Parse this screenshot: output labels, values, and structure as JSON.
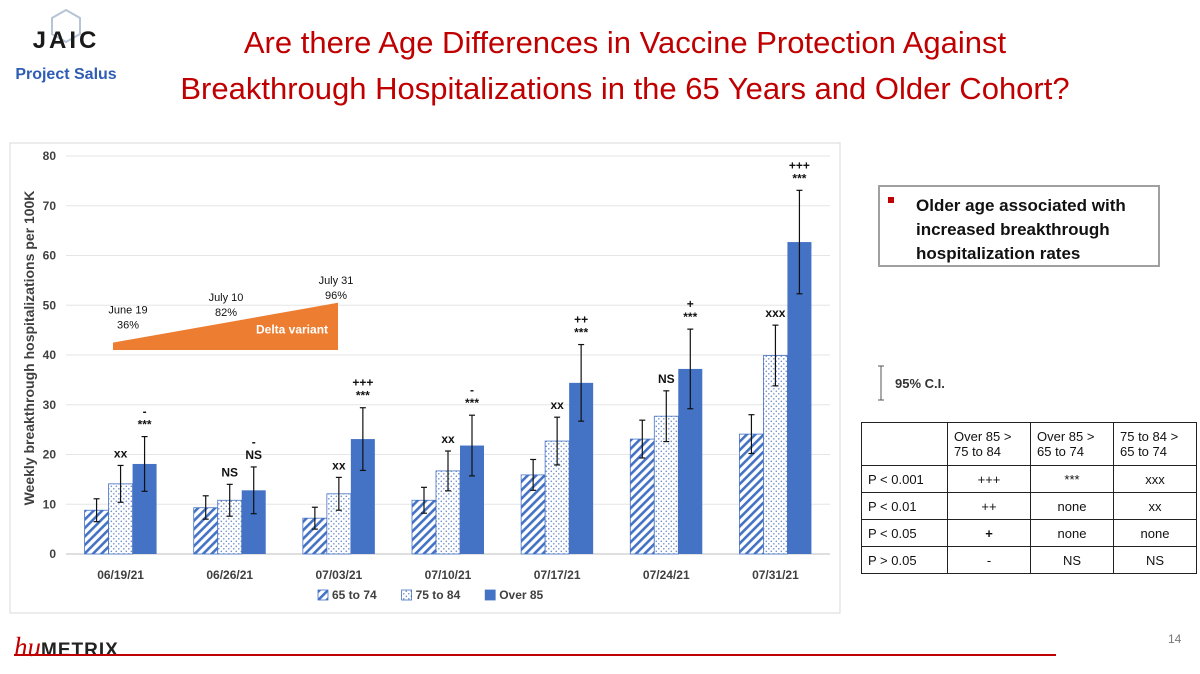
{
  "logo": {
    "name": "JAIC",
    "subtitle": "Project Salus"
  },
  "title_line1": "Are there Age Differences in Vaccine Protection Against",
  "title_line2": "Breakthrough Hospitalizations in the 65 Years and Older Cohort?",
  "note": {
    "text": "Older age associated with increased breakthrough hospitalization rates"
  },
  "ci_legend": "95% C.I.",
  "significance_table": {
    "headers": [
      "",
      "Over 85 > 75 to 84",
      "Over 85 > 65 to 74",
      "75 to 84 > 65 to 74"
    ],
    "rows": [
      [
        "P < 0.001",
        "+++",
        "***",
        "xxx"
      ],
      [
        "P < 0.01",
        "++",
        "none",
        "xx"
      ],
      [
        "P < 0.05",
        "+",
        "none",
        "none"
      ],
      [
        "P > 0.05",
        "-",
        "NS",
        "NS"
      ]
    ]
  },
  "footer": {
    "brand_hu": "hu",
    "brand_metrix": "METRIX",
    "page": "14"
  },
  "chart_data": {
    "type": "bar",
    "ylabel": "Weekly breakthrough hospitalizations per 100K",
    "ylim": [
      0,
      80
    ],
    "yticks": [
      0,
      10,
      20,
      30,
      40,
      50,
      60,
      70,
      80
    ],
    "grid": true,
    "legend_position": "bottom",
    "categories": [
      "06/19/21",
      "06/26/21",
      "07/03/21",
      "07/10/21",
      "07/17/21",
      "07/24/21",
      "07/31/21"
    ],
    "series": [
      {
        "name": "65 to 74",
        "color": "#4472c4",
        "pattern": "hatch",
        "values": [
          8.8,
          9.3,
          7.2,
          10.8,
          15.9,
          23.1,
          24.1
        ],
        "ci_low": [
          6.5,
          7.0,
          5.0,
          8.2,
          12.8,
          19.3,
          20.2
        ],
        "ci_high": [
          11.1,
          11.7,
          9.4,
          13.4,
          19.0,
          26.9,
          28.0
        ]
      },
      {
        "name": "75 to 84",
        "color": "#4472c4",
        "pattern": "dots",
        "values": [
          14.1,
          10.8,
          12.1,
          16.7,
          22.7,
          27.7,
          39.9
        ],
        "ci_low": [
          10.4,
          7.6,
          8.8,
          12.7,
          17.9,
          22.6,
          33.8
        ],
        "ci_high": [
          17.8,
          14.0,
          15.4,
          20.7,
          27.5,
          32.8,
          46.0
        ]
      },
      {
        "name": "Over 85",
        "color": "#4472c4",
        "pattern": "solid",
        "values": [
          18.1,
          12.8,
          23.1,
          21.8,
          34.4,
          37.2,
          62.7
        ],
        "ci_low": [
          12.6,
          8.1,
          16.8,
          15.7,
          26.7,
          29.2,
          52.3
        ],
        "ci_high": [
          23.6,
          17.5,
          29.4,
          27.9,
          42.1,
          45.2,
          73.1
        ]
      }
    ],
    "annotations": [
      {
        "category": "06/19/21",
        "series": "75 to 84",
        "lines": [
          "xx"
        ]
      },
      {
        "category": "06/19/21",
        "series": "Over 85",
        "lines": [
          "-",
          "***"
        ]
      },
      {
        "category": "06/26/21",
        "series": "75 to 84",
        "lines": [
          "NS"
        ]
      },
      {
        "category": "06/26/21",
        "series": "Over 85",
        "lines": [
          "-",
          "NS"
        ]
      },
      {
        "category": "07/03/21",
        "series": "75 to 84",
        "lines": [
          "xx"
        ]
      },
      {
        "category": "07/03/21",
        "series": "Over 85",
        "lines": [
          "+++",
          "***"
        ]
      },
      {
        "category": "07/10/21",
        "series": "75 to 84",
        "lines": [
          "xx"
        ]
      },
      {
        "category": "07/10/21",
        "series": "Over 85",
        "lines": [
          "-",
          "***"
        ]
      },
      {
        "category": "07/17/21",
        "series": "75 to 84",
        "lines": [
          "xx"
        ]
      },
      {
        "category": "07/17/21",
        "series": "Over 85",
        "lines": [
          "++",
          "***"
        ]
      },
      {
        "category": "07/24/21",
        "series": "75 to 84",
        "lines": [
          "NS"
        ]
      },
      {
        "category": "07/24/21",
        "series": "Over 85",
        "lines": [
          "+",
          "***"
        ]
      },
      {
        "category": "07/31/21",
        "series": "75 to 84",
        "lines": [
          "xxx"
        ]
      },
      {
        "category": "07/31/21",
        "series": "Over 85",
        "lines": [
          "+++",
          "***"
        ]
      }
    ],
    "delta_variant": {
      "label": "Delta variant",
      "color": "#ed7d31",
      "milestones": [
        {
          "date": "June 19",
          "percent": "36%"
        },
        {
          "date": "July 10",
          "percent": "82%"
        },
        {
          "date": "July 31",
          "percent": "96%"
        }
      ]
    }
  }
}
